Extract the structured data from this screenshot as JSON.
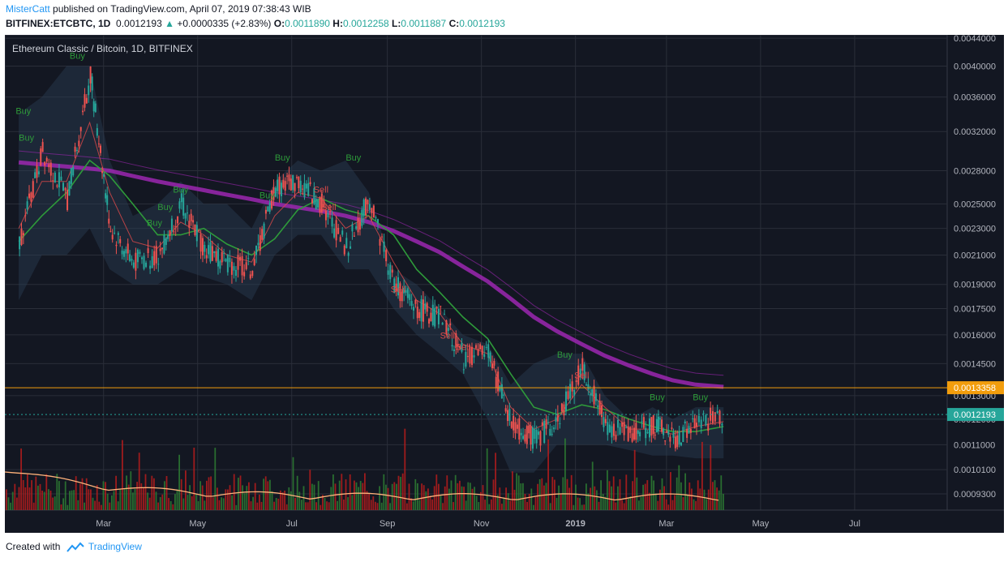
{
  "header": {
    "author": "MisterCatt",
    "published": "published on TradingView.com, April 07, 2019 07:38:43 WIB",
    "symbol": "BITFINEX:ETCBTC, 1D",
    "last": "0.0012193",
    "change": "+0.0000335 (+2.83%)",
    "o_label": "O:",
    "o_value": "0.0011890",
    "h_label": "H:",
    "h_value": "0.0012258",
    "l_label": "L:",
    "l_value": "0.0011887",
    "c_label": "C:",
    "c_value": "0.0012193"
  },
  "footer": {
    "created_with": "Created with",
    "brand": "TradingView"
  },
  "colors": {
    "background": "#131722",
    "grid": "#2a2e39",
    "up": "#26a69a",
    "down": "#ef5350",
    "ema_fast": "#e04a4a",
    "ema_mid": "#2e9a3a",
    "ema_slow": "#9c27b0",
    "volume_ma": "#ffb27a",
    "hline": "#f29d0c",
    "price_badge": "#26a69a"
  },
  "chart_data": {
    "type": "line",
    "title": "Ethereum Classic / Bitcoin, 1D, BITFINEX",
    "x_ticks": [
      "Mar",
      "May",
      "Jul",
      "Sep",
      "Nov",
      "2019",
      "Mar",
      "May",
      "Jul"
    ],
    "y_ticks": [
      "0.0044000",
      "0.0040000",
      "0.0036000",
      "0.0032000",
      "0.0028000",
      "0.0025000",
      "0.0023000",
      "0.0021000",
      "0.0019000",
      "0.0017500",
      "0.0016000",
      "0.0014500",
      "0.0013000",
      "0.0012000",
      "0.0011000",
      "0.0010100",
      "0.0009300"
    ],
    "y_scale": "log",
    "ylim": [
      0.00088,
      0.00445
    ],
    "horizontal_line": {
      "label": "0.0013358",
      "value": 0.0013358
    },
    "last_price": {
      "label": "0.0012193",
      "value": 0.0012193
    },
    "x": [
      "2018-01-05",
      "2018-01-20",
      "2018-02-05",
      "2018-02-20",
      "2018-03-05",
      "2018-03-20",
      "2018-04-05",
      "2018-04-20",
      "2018-05-05",
      "2018-05-20",
      "2018-06-05",
      "2018-06-20",
      "2018-07-05",
      "2018-07-20",
      "2018-08-05",
      "2018-08-20",
      "2018-09-05",
      "2018-09-20",
      "2018-10-05",
      "2018-10-20",
      "2018-11-05",
      "2018-11-20",
      "2018-12-05",
      "2018-12-20",
      "2019-01-05",
      "2019-01-20",
      "2019-02-05",
      "2019-02-20",
      "2019-03-05",
      "2019-03-20",
      "2019-04-07"
    ],
    "series": [
      {
        "name": "",
        "kind": "close",
        "values": [
          0.0022,
          0.003,
          0.00255,
          0.0039,
          0.0023,
          0.00205,
          0.0021,
          0.0025,
          0.00215,
          0.00205,
          0.002,
          0.00265,
          0.0027,
          0.0025,
          0.00215,
          0.00255,
          0.0019,
          0.00175,
          0.0017,
          0.00148,
          0.0015,
          0.00118,
          0.00112,
          0.0012,
          0.00143,
          0.00118,
          0.00114,
          0.00118,
          0.00112,
          0.00118,
          0.00122
        ]
      },
      {
        "name": "",
        "kind": "ema_fast",
        "values": [
          0.0023,
          0.0027,
          0.0027,
          0.0033,
          0.0026,
          0.0022,
          0.00215,
          0.00235,
          0.00225,
          0.0021,
          0.00205,
          0.0024,
          0.0026,
          0.00255,
          0.0023,
          0.0024,
          0.00205,
          0.0018,
          0.00172,
          0.00155,
          0.0015,
          0.00125,
          0.00116,
          0.0012,
          0.00135,
          0.00125,
          0.00116,
          0.00116,
          0.00114,
          0.00117,
          0.00119
        ]
      },
      {
        "name": "",
        "kind": "ema_mid",
        "values": [
          0.0022,
          0.0024,
          0.0026,
          0.0029,
          0.00275,
          0.0025,
          0.00225,
          0.00225,
          0.0023,
          0.00218,
          0.0021,
          0.00222,
          0.00245,
          0.00255,
          0.00245,
          0.0024,
          0.00225,
          0.002,
          0.00185,
          0.0017,
          0.00158,
          0.0014,
          0.00125,
          0.00122,
          0.00126,
          0.00124,
          0.0012,
          0.00117,
          0.00115,
          0.00115,
          0.00117
        ]
      },
      {
        "name": "",
        "kind": "ema_slow",
        "values": [
          0.00288,
          0.00286,
          0.00284,
          0.00282,
          0.0028,
          0.00275,
          0.0027,
          0.00266,
          0.00262,
          0.00258,
          0.00254,
          0.0025,
          0.00247,
          0.00244,
          0.0024,
          0.00235,
          0.00228,
          0.0022,
          0.00212,
          0.00202,
          0.00192,
          0.00181,
          0.0017,
          0.00162,
          0.00155,
          0.00149,
          0.00144,
          0.0014,
          0.00137,
          0.00135,
          0.00134
        ]
      },
      {
        "name": "",
        "kind": "band_upper",
        "values": [
          0.0034,
          0.0036,
          0.004,
          0.004,
          0.0029,
          0.0024,
          0.0025,
          0.0027,
          0.0025,
          0.0025,
          0.0023,
          0.0027,
          0.0029,
          0.0028,
          0.0029,
          0.0026,
          0.002,
          0.0019,
          0.00175,
          0.0016,
          0.00155,
          0.00135,
          0.00145,
          0.0015,
          0.0015,
          0.0013,
          0.0012,
          0.00125,
          0.0012,
          0.00125,
          0.00125
        ]
      },
      {
        "name": "",
        "kind": "band_lower",
        "values": [
          0.0018,
          0.0021,
          0.0021,
          0.0023,
          0.002,
          0.0019,
          0.0019,
          0.002,
          0.00195,
          0.0019,
          0.0018,
          0.0021,
          0.00225,
          0.00225,
          0.002,
          0.002,
          0.00175,
          0.0016,
          0.0015,
          0.0014,
          0.0012,
          0.001,
          0.001,
          0.0011,
          0.0011,
          0.0011,
          0.00108,
          0.00106,
          0.00106,
          0.00105,
          0.00105
        ]
      }
    ],
    "signals": [
      {
        "text": "Buy",
        "x": "2018-01-08",
        "y": 0.0034
      },
      {
        "text": "Buy",
        "x": "2018-01-10",
        "y": 0.0031
      },
      {
        "text": "Buy",
        "x": "2018-02-12",
        "y": 0.0041
      },
      {
        "text": "Buy",
        "x": "2018-04-20",
        "y": 0.0026
      },
      {
        "text": "Buy",
        "x": "2018-04-10",
        "y": 0.00245
      },
      {
        "text": "Buy",
        "x": "2018-04-03",
        "y": 0.00232
      },
      {
        "text": "Buy",
        "x": "2018-06-25",
        "y": 0.0029
      },
      {
        "text": "Buy",
        "x": "2018-06-15",
        "y": 0.00255
      },
      {
        "text": "Buy",
        "x": "2018-08-10",
        "y": 0.0029
      },
      {
        "text": "Sell",
        "x": "2018-07-20",
        "y": 0.0026
      },
      {
        "text": "Sell",
        "x": "2018-07-25",
        "y": 0.00245
      },
      {
        "text": "Sell",
        "x": "2018-09-08",
        "y": 0.00185
      },
      {
        "text": "Sell",
        "x": "2018-10-10",
        "y": 0.00158
      },
      {
        "text": "Sell",
        "x": "2018-10-20",
        "y": 0.00152
      },
      {
        "text": "Buy",
        "x": "2018-12-25",
        "y": 0.00148
      },
      {
        "text": "Sell",
        "x": "2019-01-05",
        "y": 0.00138
      },
      {
        "text": "Buy",
        "x": "2019-02-23",
        "y": 0.00128
      },
      {
        "text": "Buy",
        "x": "2019-03-23",
        "y": 0.00128
      }
    ]
  }
}
